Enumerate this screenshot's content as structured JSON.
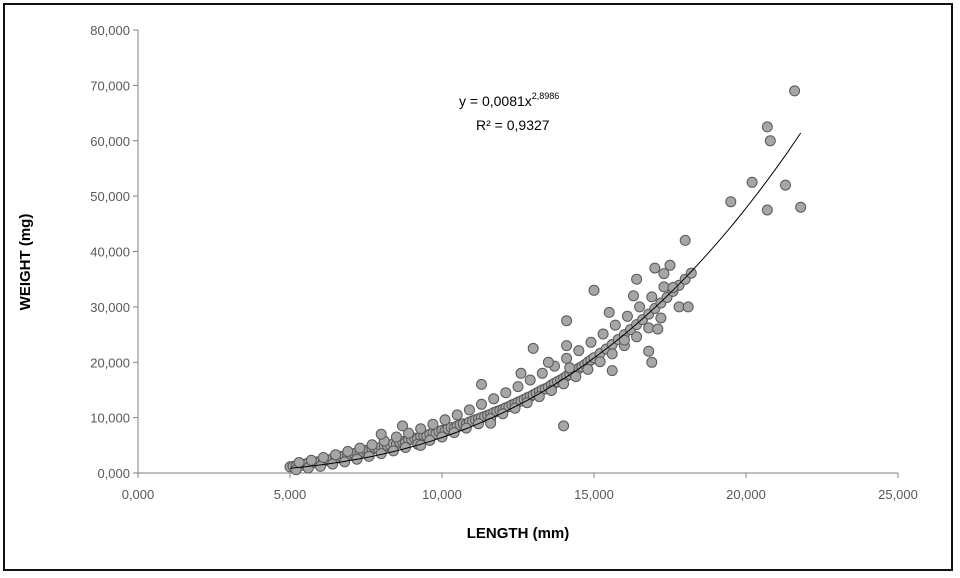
{
  "chart_data": {
    "type": "scatter",
    "title": "",
    "xlabel": "LENGTH (mm)",
    "ylabel": "WEIGHT (mg)",
    "xlim": [
      0,
      25000
    ],
    "ylim": [
      0,
      80000
    ],
    "xticks": [
      "0,000",
      "5,000",
      "10,000",
      "15,000",
      "20,000",
      "25,000"
    ],
    "yticks": [
      "0,000",
      "10,000",
      "20,000",
      "30,000",
      "40,000",
      "50,000",
      "60,000",
      "70,000",
      "80,000"
    ],
    "grid": false,
    "legend": "none",
    "marker_color": "#a6a6a6",
    "marker_edge": "#595959",
    "trendline": {
      "model": "power",
      "coefficient": 0.0081,
      "exponent": 2.8986,
      "x_range": [
        5000,
        21800
      ],
      "equation_base": "y = 0,0081x",
      "equation_exponent": "2,8986",
      "r_squared": "R² = 0,9327"
    },
    "series": [
      {
        "x": [
          5000,
          5100,
          5200,
          5300,
          5400,
          5500,
          5600,
          5700,
          5800,
          5900,
          6000,
          6100,
          6200,
          6300,
          6400,
          6500,
          6600,
          6700,
          6800,
          6900,
          7000,
          7100,
          7200,
          7300,
          7400,
          7500,
          7600,
          7700,
          7800,
          7900,
          8000,
          8100,
          8200,
          8300,
          8400,
          8500,
          8600,
          8700,
          8800,
          8900,
          9000,
          9100,
          9200,
          9300,
          9400,
          9500,
          9600,
          9700,
          9800,
          9900,
          10000,
          10100,
          10200,
          10300,
          10400,
          10500,
          10600,
          10700,
          10800,
          10900,
          11000,
          11100,
          11200,
          11300,
          11400,
          11500,
          11600,
          11700,
          11800,
          11900,
          12000,
          12100,
          12200,
          12300,
          12400,
          12500,
          12600,
          12700,
          12800,
          12900,
          13000,
          13100,
          13200,
          13300,
          13400,
          13500,
          13600,
          13700,
          13800,
          13900,
          14000,
          14100,
          14200,
          14300,
          14400,
          14500,
          14600,
          14700,
          14800,
          14900,
          15000,
          15200,
          15400,
          15600,
          15800,
          16000,
          16200,
          16400,
          16600,
          16800,
          17000,
          17200,
          17400,
          17600,
          17800,
          18000,
          18200,
          5200,
          5600,
          6000,
          6400,
          6800,
          7200,
          7600,
          8000,
          8400,
          8800,
          9200,
          9600,
          10000,
          10400,
          10800,
          11200,
          11600,
          12000,
          12400,
          12800,
          13200,
          13600,
          14000,
          14400,
          14800,
          15200,
          15600,
          16000,
          16400,
          16800,
          17200,
          5300,
          5700,
          6100,
          6500,
          6900,
          7300,
          7700,
          8100,
          8500,
          8900,
          9300,
          9700,
          10100,
          10500,
          10900,
          11300,
          11700,
          12100,
          12500,
          12900,
          13300,
          13700,
          14100,
          14500,
          14900,
          15300,
          15700,
          16100,
          16500,
          16900,
          17300,
          8000,
          8700,
          9300,
          11300,
          11600,
          12600,
          13000,
          13500,
          14000,
          14100,
          14200,
          15000,
          15500,
          16000,
          16300,
          16800,
          17000,
          17100,
          17600,
          17800,
          18000,
          14100,
          15600,
          16400,
          16900,
          17300,
          17500,
          18100,
          19500,
          20200,
          20700,
          20800,
          21300,
          21600,
          21800,
          20700
        ],
        "y": [
          1100,
          1200,
          1300,
          1500,
          1400,
          1600,
          1800,
          1700,
          1900,
          2000,
          2100,
          2300,
          2200,
          2400,
          2600,
          2800,
          2700,
          3000,
          3100,
          3300,
          3400,
          3500,
          3700,
          3600,
          3900,
          4100,
          4000,
          4300,
          4500,
          4400,
          4700,
          4600,
          5000,
          5100,
          5300,
          5200,
          5600,
          5700,
          5500,
          6000,
          6100,
          6300,
          6200,
          6600,
          6800,
          6700,
          7000,
          7200,
          7100,
          7500,
          7700,
          7600,
          8000,
          8200,
          8100,
          8500,
          8700,
          8900,
          8800,
          9200,
          9400,
          9600,
          9800,
          10000,
          10200,
          10400,
          10600,
          10900,
          11100,
          11300,
          11500,
          11800,
          12000,
          12300,
          12500,
          12800,
          13000,
          13300,
          13600,
          13800,
          14100,
          14400,
          14700,
          15000,
          15200,
          15500,
          15900,
          16200,
          16500,
          16800,
          17100,
          17500,
          17800,
          18200,
          18500,
          18900,
          19200,
          19600,
          20000,
          20400,
          20800,
          21600,
          22400,
          23200,
          24100,
          25000,
          25900,
          26800,
          27700,
          28700,
          29700,
          30700,
          31700,
          32800,
          33900,
          35000,
          36100,
          600,
          900,
          1200,
          1600,
          2000,
          2500,
          3000,
          3500,
          4000,
          4600,
          5200,
          5900,
          6500,
          7300,
          8100,
          8900,
          9800,
          10700,
          11700,
          12700,
          13800,
          14900,
          16100,
          17400,
          18700,
          20100,
          21500,
          23000,
          24600,
          26200,
          28000,
          1900,
          2300,
          2800,
          3300,
          3900,
          4500,
          5100,
          5800,
          6500,
          7200,
          8000,
          8800,
          9600,
          10500,
          11400,
          12400,
          13400,
          14500,
          15600,
          16800,
          18000,
          19300,
          20700,
          22100,
          23600,
          25100,
          26700,
          28300,
          30000,
          31800,
          33600,
          7000,
          8500,
          5000,
          16000,
          9000,
          18000,
          22500,
          20000,
          8500,
          27500,
          19000,
          33000,
          29000,
          24000,
          32000,
          22000,
          37000,
          26000,
          33500,
          30000,
          42000,
          23000,
          18500,
          35000,
          20000,
          36000,
          37500,
          30000,
          49000,
          52500,
          47500,
          60000,
          52000,
          69000,
          48000,
          62500
        ]
      }
    ]
  }
}
